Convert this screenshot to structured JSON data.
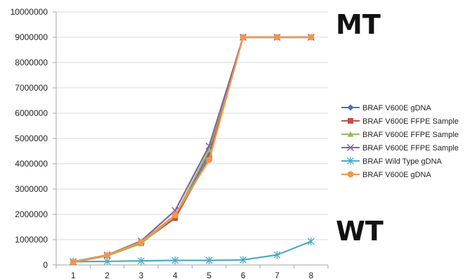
{
  "chart_data": {
    "type": "line",
    "x": [
      1,
      2,
      3,
      4,
      5,
      6,
      7,
      8
    ],
    "ylim": [
      0,
      10000000
    ],
    "yticks": [
      0,
      1000000,
      2000000,
      3000000,
      4000000,
      5000000,
      6000000,
      7000000,
      8000000,
      9000000,
      10000000
    ],
    "grid": "horizontal",
    "legend_position": "right",
    "annotations": [
      {
        "text": "MT"
      },
      {
        "text": "WT"
      }
    ],
    "series": [
      {
        "name": "BRAF V600E gDNA",
        "color": "#4472c4",
        "marker": "diamond",
        "values": [
          120000,
          380000,
          900000,
          1950000,
          4400000,
          9000000,
          9000000,
          9000000
        ]
      },
      {
        "name": "BRAF V600E FFPE Sample",
        "color": "#c0504d",
        "marker": "square",
        "values": [
          110000,
          370000,
          880000,
          1850000,
          4250000,
          9000000,
          9000000,
          9000000
        ]
      },
      {
        "name": "BRAF V600E FFPE Sample",
        "color": "#9bbb59",
        "marker": "triangle",
        "values": [
          100000,
          360000,
          840000,
          1950000,
          4550000,
          9000000,
          9000000,
          9000000
        ]
      },
      {
        "name": "BRAF V600E FFPE Sample",
        "color": "#8064a2",
        "marker": "x",
        "values": [
          130000,
          390000,
          950000,
          2150000,
          4700000,
          9000000,
          9000000,
          9000000
        ]
      },
      {
        "name": "BRAF Wild Type gDNA",
        "color": "#4bacc6",
        "marker": "star",
        "values": [
          130000,
          140000,
          160000,
          180000,
          180000,
          200000,
          400000,
          930000
        ]
      },
      {
        "name": "BRAF V600E gDNA",
        "color": "#f79646",
        "marker": "circle",
        "values": [
          120000,
          380000,
          910000,
          1980000,
          4150000,
          9000000,
          9000000,
          9000000
        ]
      }
    ]
  }
}
